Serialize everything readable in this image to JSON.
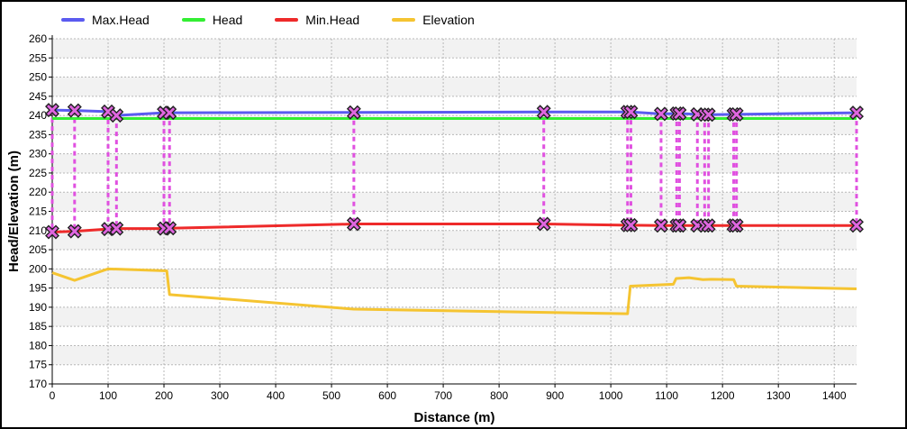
{
  "chart_data": {
    "type": "line",
    "title": "",
    "xlabel": "Distance (m)",
    "ylabel": "Head/Elevation (m)",
    "xlim": [
      0,
      1440
    ],
    "ylim": [
      170,
      260
    ],
    "xticks": [
      0,
      100,
      200,
      300,
      400,
      500,
      600,
      700,
      800,
      900,
      1000,
      1100,
      1200,
      1300,
      1400
    ],
    "yticks": [
      170,
      175,
      180,
      185,
      190,
      195,
      200,
      205,
      210,
      215,
      220,
      225,
      230,
      235,
      240,
      245,
      250,
      255,
      260
    ],
    "grid": true,
    "legend_position": "top",
    "series": [
      {
        "name": "Max.Head",
        "color": "#5b5bf0",
        "x": [
          0,
          40,
          100,
          115,
          200,
          210,
          540,
          880,
          1030,
          1036,
          1090,
          1118,
          1123,
          1155,
          1168,
          1175,
          1220,
          1225,
          1440
        ],
        "y": [
          241.4,
          241.3,
          241.0,
          240.0,
          240.7,
          240.7,
          240.8,
          240.9,
          240.9,
          240.9,
          240.4,
          240.5,
          240.5,
          240.3,
          240.2,
          240.2,
          240.3,
          240.3,
          240.7
        ]
      },
      {
        "name": "Head",
        "color": "#33ee33",
        "x": [
          0,
          1440
        ],
        "y": [
          239.2,
          239.2
        ]
      },
      {
        "name": "Min.Head",
        "color": "#ee2a2a",
        "x": [
          0,
          40,
          100,
          115,
          200,
          210,
          540,
          880,
          1030,
          1036,
          1090,
          1118,
          1123,
          1155,
          1168,
          1175,
          1220,
          1225,
          1440
        ],
        "y": [
          209.6,
          209.8,
          210.4,
          210.5,
          210.5,
          210.6,
          211.7,
          211.7,
          211.4,
          211.4,
          211.3,
          211.3,
          211.3,
          211.3,
          211.3,
          211.3,
          211.3,
          211.3,
          211.3
        ]
      },
      {
        "name": "Elevation",
        "color": "#f5c431",
        "x": [
          0,
          40,
          100,
          205,
          210,
          540,
          1030,
          1035,
          1112,
          1117,
          1140,
          1165,
          1180,
          1220,
          1225,
          1440
        ],
        "y": [
          199.0,
          197.0,
          200.0,
          199.5,
          193.3,
          189.5,
          188.3,
          195.5,
          196.0,
          197.5,
          197.7,
          197.2,
          197.3,
          197.2,
          195.5,
          194.8
        ]
      }
    ],
    "node_markers": {
      "x": [
        0,
        40,
        100,
        115,
        200,
        210,
        540,
        880,
        1030,
        1036,
        1090,
        1118,
        1123,
        1155,
        1168,
        1175,
        1220,
        1225,
        1440
      ],
      "color": "#e050e0"
    }
  }
}
